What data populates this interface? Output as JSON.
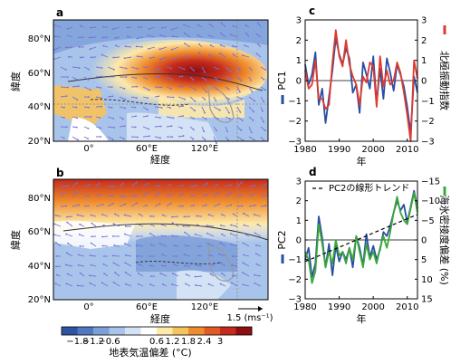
{
  "map_a": {
    "panel_label": "a",
    "lat_ticks": [
      "80°N",
      "60°N",
      "40°N",
      "20°N"
    ],
    "lon_ticks": [
      "0°",
      "60°E",
      "120°E"
    ],
    "xlabel": "経度",
    "ylabel": "緯度"
  },
  "map_b": {
    "panel_label": "b",
    "lat_ticks": [
      "80°N",
      "60°N",
      "40°N",
      "20°N"
    ],
    "lon_ticks": [
      "0°",
      "60°E",
      "120°E"
    ],
    "xlabel": "経度",
    "ylabel": "緯度",
    "vector_scale": "1.5 (ms⁻¹)"
  },
  "colorbar": {
    "ticks": [
      "−1.8",
      "−1.2",
      "−0.6",
      "0.6",
      "1.2",
      "1.8",
      "2.4",
      "3"
    ],
    "colors": [
      "#2d54a3",
      "#4f78c1",
      "#7c9fd8",
      "#a9c4ea",
      "#d3e2f5",
      "#ffffff",
      "#fde9a8",
      "#f7c35c",
      "#ef8c2e",
      "#e15a21",
      "#c52a1c",
      "#8d0f12"
    ],
    "label": "地表気温偏差 (°C)"
  },
  "chart_data": [
    {
      "type": "line",
      "panel_label": "c",
      "xlabel": "年",
      "ylabel_left": "PC1",
      "ylabel_right": "北極振動指数",
      "x": [
        1980,
        1981,
        1982,
        1983,
        1984,
        1985,
        1986,
        1987,
        1988,
        1989,
        1990,
        1991,
        1992,
        1993,
        1994,
        1995,
        1996,
        1997,
        1998,
        1999,
        2000,
        2001,
        2002,
        2003,
        2004,
        2005,
        2006,
        2007,
        2008,
        2009,
        2010,
        2011,
        2012,
        2013
      ],
      "xlim": [
        1980,
        2013
      ],
      "xticks": [
        1980,
        1990,
        2000,
        2010
      ],
      "ylim_left": [
        -3,
        3
      ],
      "yticks_left": [
        -3,
        -2,
        -1,
        0,
        1,
        2,
        3
      ],
      "ylim_right": [
        -3,
        3
      ],
      "yticks_right": [
        -3,
        -2,
        -1,
        0,
        1,
        2,
        3
      ],
      "series": [
        {
          "name": "PC1",
          "axis": "left",
          "color": "#2b4ea2",
          "values": [
            0.8,
            -0.2,
            0.3,
            1.4,
            -1.2,
            -0.4,
            -2.1,
            -0.8,
            0.5,
            2.1,
            1.3,
            0.8,
            1.6,
            1.1,
            -0.6,
            -0.2,
            -1.6,
            0.9,
            0.3,
            -0.4,
            1.2,
            -1.1,
            0.6,
            -0.9,
            1.1,
            0.4,
            -0.5,
            0.8,
            0.3,
            -0.3,
            -1.3,
            -2.6,
            0.2,
            -0.6
          ]
        },
        {
          "name": "北極振動指数",
          "axis": "right",
          "color": "#e03a2e",
          "values": [
            0.5,
            -0.4,
            -0.2,
            1.0,
            -0.9,
            -0.9,
            -1.4,
            -1.2,
            0.9,
            2.5,
            1.2,
            0.7,
            2.0,
            0.8,
            0.2,
            -0.2,
            -1.2,
            0.2,
            -0.1,
            0.9,
            0.7,
            -1.3,
            1.2,
            -0.3,
            0.5,
            -0.2,
            0.0,
            0.9,
            0.4,
            -0.6,
            -1.7,
            -3.0,
            1.0,
            0.1
          ]
        }
      ]
    },
    {
      "type": "line",
      "panel_label": "d",
      "xlabel": "年",
      "ylabel_left": "PC2",
      "ylabel_right": "海氷密接度偏差 (%)",
      "legend": "PC2の線形トレンド",
      "x": [
        1980,
        1981,
        1982,
        1983,
        1984,
        1985,
        1986,
        1987,
        1988,
        1989,
        1990,
        1991,
        1992,
        1993,
        1994,
        1995,
        1996,
        1997,
        1998,
        1999,
        2000,
        2001,
        2002,
        2003,
        2004,
        2005,
        2006,
        2007,
        2008,
        2009,
        2010,
        2011,
        2012,
        2013
      ],
      "xlim": [
        1980,
        2013
      ],
      "xticks": [
        1980,
        1990,
        2000,
        2010
      ],
      "ylim_left": [
        -3,
        3
      ],
      "yticks_left": [
        -3,
        -2,
        -1,
        0,
        1,
        2,
        3
      ],
      "ylim_right": [
        15,
        -15
      ],
      "yticks_right": [
        15,
        10,
        5,
        0,
        -5,
        -10,
        -15
      ],
      "series": [
        {
          "name": "PC2",
          "axis": "left",
          "color": "#2b4ea2",
          "values": [
            -1.0,
            -0.4,
            -1.9,
            -1.2,
            1.2,
            0.1,
            -1.4,
            -0.2,
            -1.8,
            -0.3,
            -1.1,
            -0.6,
            -1.0,
            -0.4,
            -1.4,
            0.2,
            -0.4,
            -1.3,
            0.3,
            -0.9,
            -0.3,
            -1.0,
            -0.5,
            0.4,
            0.2,
            0.7,
            1.4,
            2.0,
            1.5,
            1.8,
            0.9,
            1.7,
            2.5,
            1.6
          ]
        },
        {
          "name": "海氷密接度偏差",
          "axis": "right",
          "color": "#3aa935",
          "values": [
            3.0,
            5.0,
            11.0,
            8.0,
            -4.0,
            1.0,
            7.0,
            3.0,
            6.0,
            0.0,
            4.0,
            3.0,
            6.0,
            2.0,
            5.0,
            -1.0,
            3.0,
            7.0,
            1.0,
            5.0,
            3.0,
            6.0,
            2.0,
            -1.0,
            2.0,
            -2.0,
            -7.0,
            -11.0,
            -7.0,
            -5.0,
            -4.0,
            -8.0,
            -12.0,
            -7.0
          ]
        },
        {
          "name": "PC2の線形トレンド",
          "axis": "left",
          "color": "#000000",
          "dashed": true,
          "values_at_ends": [
            -1.1,
            1.3
          ]
        }
      ]
    }
  ]
}
